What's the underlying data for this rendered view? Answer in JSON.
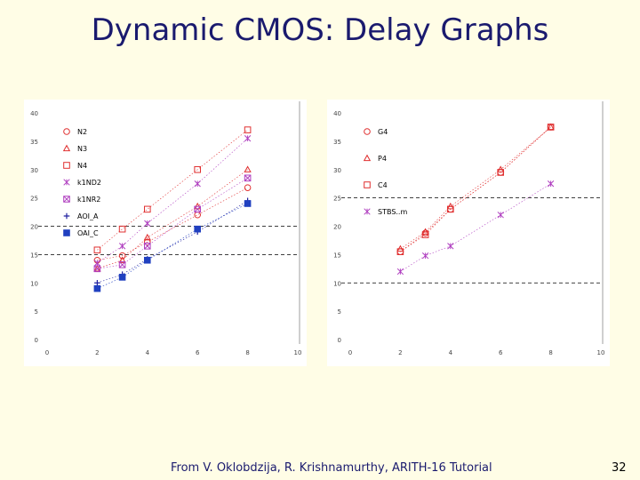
{
  "slide": {
    "title": "Dynamic CMOS: Delay Graphs",
    "footer": "From V. Oklobdzija, R. Krishnamurthy, ARITH-16 Tutorial",
    "page_number": "32"
  },
  "chart_data": [
    {
      "type": "scatter",
      "title": "",
      "xlabel": "",
      "ylabel": "",
      "xlim": [
        0,
        10
      ],
      "ylim": [
        0,
        40
      ],
      "xticks": [
        "0",
        "2",
        "4",
        "6",
        "8",
        "10"
      ],
      "yticks": [
        "0",
        "5",
        "10",
        "15",
        "20",
        "25",
        "30",
        "35",
        "40"
      ],
      "grid": false,
      "legend_position": "top-left",
      "reference_lines": [
        15,
        20
      ],
      "series": [
        {
          "name": "N2",
          "marker": "circle",
          "color": "#e03030",
          "points": [
            [
              2,
              14
            ],
            [
              3,
              14.8
            ],
            [
              4,
              17.2
            ],
            [
              6,
              22
            ],
            [
              8,
              26.8
            ]
          ]
        },
        {
          "name": "N3",
          "marker": "triangle",
          "color": "#e03030",
          "points": [
            [
              2,
              12.5
            ],
            [
              3,
              14
            ],
            [
              4,
              18
            ],
            [
              6,
              23.5
            ],
            [
              8,
              30
            ]
          ]
        },
        {
          "name": "N4",
          "marker": "square",
          "color": "#e03030",
          "points": [
            [
              2,
              15.8
            ],
            [
              3,
              19.5
            ],
            [
              4,
              23
            ],
            [
              6,
              30
            ],
            [
              8,
              37
            ]
          ]
        },
        {
          "name": "k1ND2",
          "marker": "asterisk",
          "color": "#b040c0",
          "points": [
            [
              2,
              13.5
            ],
            [
              3,
              16.5
            ],
            [
              4,
              20.5
            ],
            [
              6,
              27.5
            ],
            [
              8,
              35.5
            ]
          ]
        },
        {
          "name": "k1NR2",
          "marker": "boxx",
          "color": "#b040c0",
          "points": [
            [
              2,
              12.5
            ],
            [
              3,
              13.2
            ],
            [
              4,
              16.5
            ],
            [
              6,
              23
            ],
            [
              8,
              28.5
            ]
          ]
        },
        {
          "name": "AOI_A",
          "marker": "plus",
          "color": "#2020a0",
          "points": [
            [
              2,
              10
            ],
            [
              3,
              11.5
            ],
            [
              4,
              14.2
            ],
            [
              6,
              19
            ],
            [
              8,
              24.5
            ]
          ]
        },
        {
          "name": "OAI_C",
          "marker": "filledsquare",
          "color": "#2040c0",
          "points": [
            [
              2,
              9
            ],
            [
              3,
              11
            ],
            [
              4,
              14
            ],
            [
              6,
              19.5
            ],
            [
              8,
              24
            ]
          ]
        }
      ]
    },
    {
      "type": "scatter",
      "title": "",
      "xlabel": "",
      "ylabel": "",
      "xlim": [
        0,
        10
      ],
      "ylim": [
        0,
        40
      ],
      "xticks": [
        "0",
        "2",
        "4",
        "6",
        "8",
        "10"
      ],
      "yticks": [
        "0",
        "5",
        "10",
        "15",
        "20",
        "25",
        "30",
        "35",
        "40"
      ],
      "grid": false,
      "legend_position": "top-left",
      "reference_lines": [
        10,
        25
      ],
      "series": [
        {
          "name": "G4",
          "marker": "circle",
          "color": "#e03030",
          "points": [
            [
              2,
              15.5
            ],
            [
              3,
              18.8
            ],
            [
              4,
              23
            ],
            [
              6,
              29.5
            ],
            [
              8,
              37.5
            ]
          ]
        },
        {
          "name": "P4",
          "marker": "triangle",
          "color": "#e03030",
          "points": [
            [
              2,
              16
            ],
            [
              3,
              19
            ],
            [
              4,
              23.5
            ],
            [
              6,
              30
            ],
            [
              8,
              37.5
            ]
          ]
        },
        {
          "name": "C4",
          "marker": "square",
          "color": "#e03030",
          "points": [
            [
              2,
              15.5
            ],
            [
              3,
              18.5
            ],
            [
              4,
              23
            ],
            [
              6,
              29.5
            ],
            [
              8,
              37.5
            ]
          ]
        },
        {
          "name": "STBS..m",
          "marker": "asterisk",
          "color": "#b040c0",
          "points": [
            [
              2,
              12
            ],
            [
              3,
              14.8
            ],
            [
              4,
              16.5
            ],
            [
              6,
              22
            ],
            [
              8,
              27.5
            ]
          ]
        }
      ]
    }
  ]
}
